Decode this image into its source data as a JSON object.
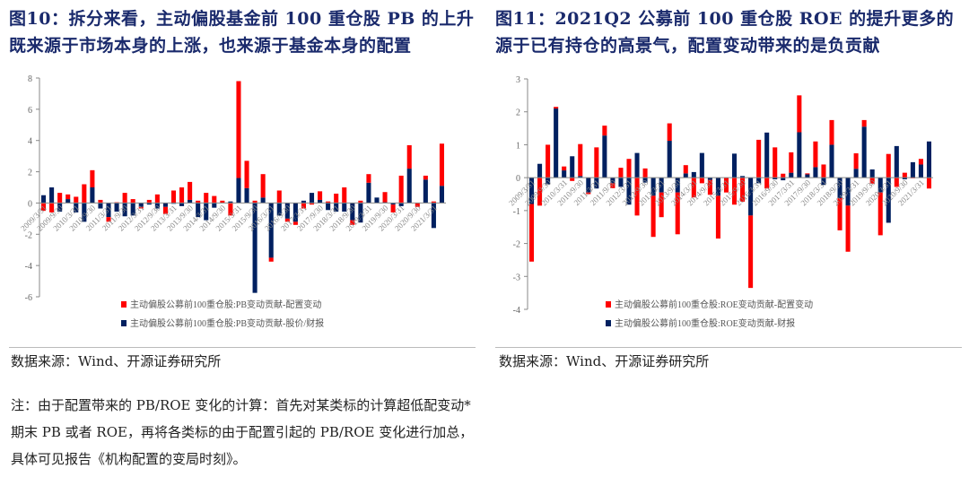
{
  "left": {
    "title": "图10：拆分来看，主动偏股基金前 100 重仓股 PB 的上升既来源于市场本身的上涨，也来源于基金本身的配置",
    "source": "数据来源：Wind、开源证券研究所"
  },
  "right": {
    "title": "图11：2021Q2 公募前 100 重仓股 ROE 的提升更多的源于已有持仓的高景气，配置变动带来的是负贡献",
    "source": "数据来源：Wind、开源证券研究所"
  },
  "note": "注：由于配置带来的 PB/ROE 变化的计算：首先对某类标的计算超低配变动*期末 PB 或者 ROE，再将各类标的由于配置引起的 PB/ROE 变化进行加总，具体可见报告《机构配置的变局时刻》。",
  "colors": {
    "red": "#ff0000",
    "blue": "#002060"
  },
  "chart_data": [
    {
      "type": "bar",
      "stacked": true,
      "ylim": [
        -6,
        8
      ],
      "yticks": [
        -6,
        -4,
        -2,
        0,
        2,
        4,
        6,
        8
      ],
      "xticklabels": [
        "2009/3/31",
        "2009/9/30",
        "2010/3/31",
        "2010/9/30",
        "2011/3/31",
        "2011/9/30",
        "2012/3/31",
        "2012/9/30",
        "2013/3/31",
        "2013/9/30",
        "2014/3/31",
        "2014/9/30",
        "2015/3/31",
        "2015/9/30",
        "2016/3/31",
        "2016/9/30",
        "2017/3/31",
        "2017/9/30",
        "2018/3/31",
        "2018/9/30",
        "2019/3/31",
        "2019/9/30",
        "2020/3/31",
        "2020/9/30",
        "2021/3/31"
      ],
      "series": [
        {
          "name": "主动偏股公募前100重仓股:PB变动贡献-配置变动",
          "color": "#ff0000",
          "values": [
            -0.5,
            -0.6,
            0.65,
            0.3,
            0.4,
            1.2,
            1.1,
            0.2,
            -0.3,
            0.05,
            0.65,
            0.25,
            -0.1,
            0.2,
            0.55,
            -0.45,
            0.8,
            1.0,
            1.15,
            0.15,
            0.65,
            0.45,
            0.15,
            -0.8,
            6.2,
            1.75,
            0.15,
            1.5,
            -0.25,
            0.8,
            -0.2,
            -0.2,
            -0.35,
            -0.1,
            0.55,
            0.1,
            0.6,
            1.0,
            -0.3,
            0.15,
            0.55,
            0,
            0.65,
            -0.5,
            1.75,
            1.5,
            -0.25,
            0.25,
            0.1,
            2.7
          ]
        },
        {
          "name": "主动偏股公募前100重仓股:PB变动贡献-股价/财报",
          "color": "#002060",
          "values": [
            0.5,
            1.0,
            -0.55,
            0.25,
            -0.6,
            -1.2,
            1.0,
            -0.35,
            -0.9,
            -0.55,
            -0.85,
            -0.8,
            -0.25,
            -0.1,
            -0.35,
            -0.25,
            -0.05,
            -0.2,
            0.2,
            -0.9,
            -1.1,
            -0.3,
            0,
            0.1,
            1.6,
            0.95,
            -5.75,
            0.35,
            -3.5,
            -0.8,
            -1.0,
            -1.2,
            0.15,
            0.65,
            0.2,
            -0.45,
            -0.55,
            -0.55,
            -1.1,
            -1.25,
            1.3,
            0.35,
            0.05,
            -0.1,
            -0.2,
            2.2,
            0,
            1.5,
            -1.6,
            1.1
          ]
        }
      ]
    },
    {
      "type": "bar",
      "stacked": true,
      "ylim": [
        -4,
        3
      ],
      "yticks": [
        -4,
        -3,
        -2,
        -1,
        0,
        1,
        2,
        3
      ],
      "xticklabels": [
        "2009/3/31",
        "2009/9/30",
        "2010/3/31",
        "2010/9/30",
        "2011/3/31",
        "2011/9/30",
        "2012/3/31",
        "2012/9/30",
        "2013/3/31",
        "2013/9/30",
        "2014/3/31",
        "2014/9/30",
        "2015/3/31",
        "2015/9/30",
        "2016/3/31",
        "2016/9/30",
        "2017/3/31",
        "2017/9/30",
        "2018/3/31",
        "2018/9/30",
        "2019/3/31",
        "2019/9/30",
        "2020/3/31",
        "2020/9/30",
        "2021/3/31"
      ],
      "series": [
        {
          "name": "主动偏股公募前100重仓股:ROE变动贡献-配置变动",
          "color": "#ff0000",
          "values": [
            -1.75,
            -0.85,
            1.0,
            0.05,
            0.12,
            -0.1,
            0.97,
            -0.05,
            0.92,
            0.3,
            -0.15,
            0.3,
            0.57,
            -1.15,
            0.28,
            -1.25,
            -0.75,
            0.53,
            -1.27,
            0.25,
            -0.6,
            -0.17,
            -0.45,
            -1.3,
            -0.45,
            -0.82,
            -0.73,
            -2.2,
            1.15,
            -0.33,
            0.92,
            0.12,
            0.62,
            1.12,
            0.03,
            0.78,
            0.4,
            0.75,
            -0.98,
            -1.4,
            0.47,
            0.2,
            -0.18,
            -1.3,
            0.72,
            -0.28,
            0.15,
            -0.02,
            0.17,
            -0.33
          ]
        },
        {
          "name": "主动偏股公募前100重仓股:ROE变动贡献-财报",
          "color": "#002060",
          "values": [
            -0.8,
            0.42,
            -0.2,
            2.1,
            0.22,
            0.65,
            0.05,
            -0.45,
            -0.33,
            1.28,
            -0.17,
            -0.28,
            -0.82,
            0.75,
            -0.15,
            -0.55,
            -0.45,
            1.12,
            -0.45,
            0.13,
            0.17,
            0.75,
            -0.07,
            -0.55,
            0,
            0.73,
            0.05,
            -1.15,
            -0.17,
            1.37,
            -0.05,
            -0.08,
            0.15,
            1.38,
            0.1,
            0.32,
            -0.22,
            1.0,
            -0.62,
            -0.85,
            0.27,
            1.55,
            0.25,
            -0.45,
            -1.37,
            0.96,
            -0.05,
            0.47,
            0.4,
            1.1
          ]
        }
      ]
    }
  ]
}
